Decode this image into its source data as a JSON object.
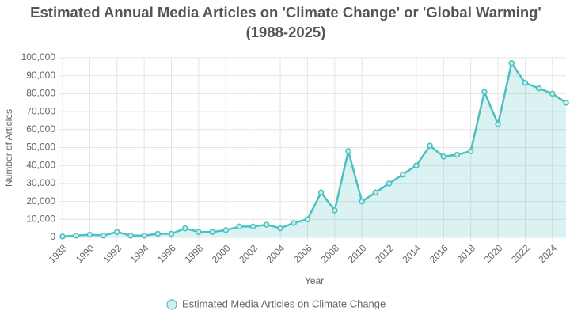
{
  "chart_data": {
    "type": "line",
    "title": [
      "Estimated Annual Media Articles on 'Climate Change' or 'Global Warming'",
      "(1988-2025)"
    ],
    "x_label": "Year",
    "y_label": "Number of Articles",
    "x": [
      1988,
      1989,
      1990,
      1991,
      1992,
      1993,
      1994,
      1995,
      1996,
      1997,
      1998,
      1999,
      2000,
      2001,
      2002,
      2003,
      2004,
      2005,
      2006,
      2007,
      2008,
      2009,
      2010,
      2011,
      2012,
      2013,
      2014,
      2015,
      2016,
      2017,
      2018,
      2019,
      2020,
      2021,
      2022,
      2023,
      2024,
      2025
    ],
    "series": [
      {
        "name": "Estimated Media Articles on Climate Change",
        "color": "#4bc0c0",
        "values": [
          500,
          1000,
          1500,
          1000,
          3000,
          1000,
          1000,
          2000,
          2000,
          5000,
          3000,
          3000,
          4000,
          6000,
          6000,
          7000,
          5000,
          8000,
          10000,
          25000,
          15000,
          48000,
          20000,
          25000,
          30000,
          35000,
          40000,
          51000,
          45000,
          46000,
          48000,
          81000,
          63000,
          97000,
          86000,
          83000,
          80000,
          75000
        ]
      }
    ],
    "xlim": [
      1988,
      2025
    ],
    "xticks": [
      1988,
      1990,
      1992,
      1994,
      1996,
      1998,
      2000,
      2002,
      2004,
      2006,
      2008,
      2010,
      2012,
      2014,
      2016,
      2018,
      2020,
      2022,
      2024
    ],
    "ylim": [
      0,
      100000
    ],
    "yticks": [
      0,
      {
        "value": 10000,
        "label": "10,000"
      },
      {
        "value": 20000,
        "label": "20,000"
      },
      {
        "value": 30000,
        "label": "30,000"
      },
      {
        "value": 40000,
        "label": "40,000"
      },
      {
        "value": 50000,
        "label": "50,000"
      },
      {
        "value": 60000,
        "label": "60,000"
      },
      {
        "value": 70000,
        "label": "70,000"
      },
      {
        "value": 80000,
        "label": "80,000"
      },
      {
        "value": 90000,
        "label": "90,000"
      },
      {
        "value": 100000,
        "label": "100,000"
      }
    ],
    "grid": true,
    "legend": "bottom"
  }
}
